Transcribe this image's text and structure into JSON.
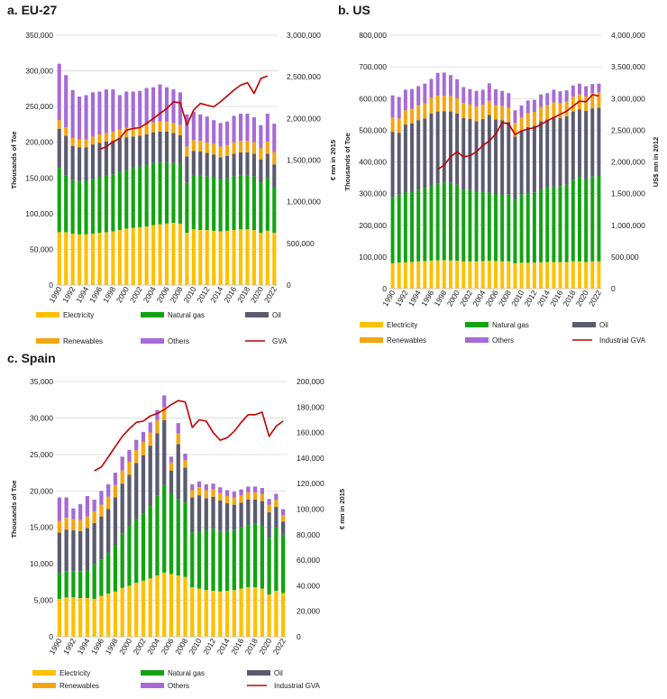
{
  "colors": {
    "Electricity": "#ffc000",
    "Natural gas": "#12a312",
    "Oil": "#5b5b70",
    "Renewables": "#f5a60f",
    "Others": "#a66bd6",
    "GVA": "#c00000"
  },
  "chart_data": [
    {
      "id": "eu",
      "type": "bar",
      "title": "a. EU-27",
      "ylabel": "Thousands of Toe",
      "y2label": "€ mn in 2015",
      "ylim": [
        0,
        350000
      ],
      "y2lim": [
        0,
        3000000
      ],
      "yticks": [
        "0",
        "50,000",
        "100,000",
        "150,000",
        "200,000",
        "250,000",
        "300,000",
        "350,000"
      ],
      "y2ticks": [
        "0",
        "500,000",
        "1,000,000",
        "1,500,000",
        "2,000,000",
        "2,500,000",
        "3,000,000"
      ],
      "categories": [
        1990,
        1991,
        1992,
        1993,
        1994,
        1995,
        1996,
        1997,
        1998,
        1999,
        2000,
        2001,
        2002,
        2003,
        2004,
        2005,
        2006,
        2007,
        2008,
        2009,
        2010,
        2011,
        2012,
        2013,
        2014,
        2015,
        2016,
        2017,
        2018,
        2019,
        2020,
        2021,
        2022
      ],
      "xticklabels": [
        "1990",
        "1992",
        "1994",
        "1996",
        "1998",
        "2000",
        "2002",
        "2004",
        "2006",
        "2008",
        "2010",
        "2012",
        "2014",
        "2016",
        "2018",
        "2020",
        "2022"
      ],
      "series": [
        {
          "name": "Electricity",
          "values": [
            74000,
            74000,
            72000,
            71000,
            71000,
            72000,
            73000,
            74000,
            75000,
            77000,
            79000,
            80000,
            81000,
            82000,
            84000,
            85000,
            86000,
            87000,
            86000,
            73000,
            78000,
            77000,
            77000,
            76000,
            75000,
            76000,
            77000,
            78000,
            78000,
            77000,
            73000,
            76000,
            73000
          ]
        },
        {
          "name": "Natural gas",
          "values": [
            90000,
            80000,
            75000,
            74000,
            75000,
            77000,
            78000,
            79000,
            80000,
            81000,
            82000,
            84000,
            85000,
            86000,
            87000,
            87000,
            86000,
            84000,
            84000,
            70000,
            75000,
            76000,
            75000,
            75000,
            73000,
            74000,
            75000,
            76000,
            76000,
            75000,
            71000,
            74000,
            64000
          ]
        },
        {
          "name": "Oil",
          "values": [
            55000,
            55000,
            48000,
            48000,
            47000,
            48000,
            48000,
            48000,
            47000,
            47000,
            46000,
            44000,
            43000,
            43000,
            43000,
            43000,
            43000,
            42000,
            40000,
            37000,
            35000,
            34000,
            33000,
            32000,
            31000,
            31000,
            32000,
            32000,
            32000,
            32000,
            32000,
            34000,
            32000
          ]
        },
        {
          "name": "Renewables",
          "values": [
            12000,
            12000,
            11000,
            11000,
            11000,
            11000,
            12000,
            12000,
            13000,
            13000,
            13000,
            13000,
            13000,
            14000,
            14000,
            14000,
            14000,
            14000,
            14000,
            14000,
            15000,
            15000,
            15000,
            15000,
            15000,
            15000,
            16000,
            16000,
            16000,
            16000,
            16000,
            17000,
            17000
          ]
        },
        {
          "name": "Others",
          "values": [
            79000,
            73000,
            67000,
            60000,
            62000,
            62000,
            60000,
            61000,
            59000,
            48000,
            51000,
            50000,
            50000,
            51000,
            49000,
            52000,
            48000,
            47000,
            46000,
            45000,
            40000,
            37000,
            36000,
            33000,
            33000,
            33000,
            37000,
            38000,
            38000,
            35000,
            32000,
            39000,
            40000
          ]
        }
      ],
      "line": {
        "name": "GVA",
        "start": 1996,
        "values": [
          1630000,
          1660000,
          1720000,
          1760000,
          1860000,
          1880000,
          1890000,
          1940000,
          2000000,
          2060000,
          2120000,
          2200000,
          2190000,
          1920000,
          2100000,
          2180000,
          2160000,
          2140000,
          2200000,
          2270000,
          2340000,
          2400000,
          2430000,
          2300000,
          2480000,
          2510000
        ]
      },
      "legend": [
        "Electricity",
        "Natural gas",
        "Oil",
        "Renewables",
        "Others",
        "GVA"
      ]
    },
    {
      "id": "us",
      "type": "bar",
      "title": "b. US",
      "ylabel": "Thousands of Toe",
      "y2label": "US$ mn in 2012",
      "ylim": [
        0,
        800000
      ],
      "y2lim": [
        0,
        4000000
      ],
      "yticks": [
        "0",
        "100,000",
        "200,000",
        "300,000",
        "400,000",
        "500,000",
        "600,000",
        "700,000",
        "800,000"
      ],
      "y2ticks": [
        "0",
        "500,000",
        "1,000,000",
        "1,500,000",
        "2,000,000",
        "2,500,000",
        "3,000,000",
        "3,500,000",
        "4,000,000"
      ],
      "categories": [
        1990,
        1991,
        1992,
        1993,
        1994,
        1995,
        1996,
        1997,
        1998,
        1999,
        2000,
        2001,
        2002,
        2003,
        2004,
        2005,
        2006,
        2007,
        2008,
        2009,
        2010,
        2011,
        2012,
        2013,
        2014,
        2015,
        2016,
        2017,
        2018,
        2019,
        2020,
        2021,
        2022
      ],
      "xticklabels": [
        "1990",
        "1992",
        "1994",
        "1996",
        "1998",
        "2000",
        "2002",
        "2004",
        "2006",
        "2008",
        "2010",
        "2012",
        "2014",
        "2016",
        "2018",
        "2020",
        "2022"
      ],
      "series": [
        {
          "name": "Electricity",
          "values": [
            80000,
            82000,
            83000,
            84000,
            86000,
            87000,
            88000,
            89000,
            90000,
            89000,
            88000,
            86000,
            86000,
            86000,
            87000,
            88000,
            87000,
            86000,
            86000,
            80000,
            82000,
            82000,
            82000,
            83000,
            84000,
            84000,
            84000,
            84000,
            86000,
            86000,
            84000,
            86000,
            86000
          ]
        },
        {
          "name": "Natural gas",
          "values": [
            210000,
            215000,
            220000,
            222000,
            226000,
            230000,
            235000,
            242000,
            245000,
            245000,
            240000,
            225000,
            225000,
            220000,
            218000,
            215000,
            212000,
            210000,
            212000,
            200000,
            215000,
            218000,
            222000,
            230000,
            235000,
            238000,
            240000,
            245000,
            258000,
            265000,
            262000,
            268000,
            270000
          ]
        },
        {
          "name": "Oil",
          "values": [
            205000,
            195000,
            215000,
            215000,
            220000,
            220000,
            230000,
            228000,
            225000,
            225000,
            225000,
            228000,
            225000,
            222000,
            230000,
            245000,
            235000,
            235000,
            228000,
            200000,
            200000,
            210000,
            210000,
            215000,
            215000,
            220000,
            215000,
            215000,
            215000,
            215000,
            215000,
            215000,
            215000
          ]
        },
        {
          "name": "Renewables",
          "values": [
            45000,
            45000,
            45000,
            47000,
            47000,
            48000,
            49000,
            50000,
            49000,
            49000,
            48000,
            47000,
            46000,
            46000,
            46000,
            45000,
            45000,
            45000,
            45000,
            43000,
            43000,
            44000,
            44000,
            45000,
            45000,
            46000,
            46000,
            46000,
            47000,
            47000,
            46000,
            47000,
            48000
          ]
        },
        {
          "name": "Others",
          "values": [
            70000,
            68000,
            65000,
            62000,
            60000,
            62000,
            60000,
            72000,
            73000,
            66000,
            60000,
            50000,
            48000,
            50000,
            47000,
            55000,
            50000,
            48000,
            46000,
            40000,
            38000,
            40000,
            38000,
            40000,
            38000,
            40000,
            38000,
            36000,
            35000,
            34000,
            32000,
            30000,
            28000
          ]
        }
      ],
      "line": {
        "name": "Industrial GVA",
        "start": 1997,
        "values": [
          1880000,
          1950000,
          2080000,
          2160000,
          2080000,
          2100000,
          2160000,
          2260000,
          2330000,
          2440000,
          2620000,
          2600000,
          2430000,
          2490000,
          2520000,
          2540000,
          2590000,
          2650000,
          2700000,
          2750000,
          2800000,
          2880000,
          2960000,
          2950000,
          3060000,
          3040000
        ]
      },
      "legend": [
        "Electricity",
        "Natural gas",
        "Oil",
        "Renewables",
        "Others",
        "Industrial GVA"
      ]
    },
    {
      "id": "es",
      "type": "bar",
      "title": "c. Spain",
      "ylabel": "Thousands of Toe",
      "y2label": "€ mn in 2015",
      "ylim": [
        0,
        35000
      ],
      "y2lim": [
        0,
        200000
      ],
      "yticks": [
        "0",
        "5,000",
        "10,000",
        "15,000",
        "20,000",
        "25,000",
        "30,000",
        "35,000"
      ],
      "y2ticks": [
        "0",
        "20,000",
        "40,000",
        "60,000",
        "80,000",
        "100,000",
        "120,000",
        "140,000",
        "160,000",
        "180,000",
        "200,000"
      ],
      "categories": [
        1990,
        1991,
        1992,
        1993,
        1994,
        1995,
        1996,
        1997,
        1998,
        1999,
        2000,
        2001,
        2002,
        2003,
        2004,
        2005,
        2006,
        2007,
        2008,
        2009,
        2010,
        2011,
        2012,
        2013,
        2014,
        2015,
        2016,
        2017,
        2018,
        2019,
        2020,
        2021,
        2022
      ],
      "xticklabels": [
        "1990",
        "1992",
        "1994",
        "1996",
        "1998",
        "2000",
        "2002",
        "2004",
        "2006",
        "2008",
        "2010",
        "2012",
        "2014",
        "2016",
        "2018",
        "2020",
        "2022"
      ],
      "series": [
        {
          "name": "Electricity",
          "values": [
            5200,
            5400,
            5400,
            5300,
            5300,
            5200,
            5600,
            5900,
            6200,
            6700,
            7000,
            7400,
            7700,
            8000,
            8400,
            8800,
            8600,
            8400,
            8200,
            6800,
            6600,
            6400,
            6300,
            6200,
            6300,
            6400,
            6600,
            6800,
            6800,
            6600,
            5800,
            6300,
            6000
          ]
        },
        {
          "name": "Natural gas",
          "values": [
            3500,
            3600,
            3600,
            3700,
            3800,
            4800,
            5000,
            5500,
            6300,
            7500,
            8200,
            8800,
            9200,
            10000,
            11000,
            12000,
            11000,
            10500,
            10200,
            7500,
            7800,
            8200,
            8500,
            8300,
            8200,
            8300,
            8400,
            8600,
            8700,
            8600,
            7800,
            8700,
            8000
          ]
        },
        {
          "name": "Oil",
          "values": [
            5600,
            5700,
            5600,
            5500,
            5800,
            5600,
            5900,
            6100,
            6600,
            6800,
            7000,
            7600,
            8000,
            8200,
            8500,
            8900,
            3200,
            7500,
            4800,
            4800,
            5000,
            4400,
            4400,
            4200,
            3800,
            3400,
            3400,
            3400,
            3300,
            3400,
            3500,
            2800,
            1800
          ]
        },
        {
          "name": "Renewables",
          "values": [
            1600,
            1600,
            1500,
            1500,
            1600,
            1600,
            1600,
            1700,
            1700,
            1800,
            1800,
            1800,
            1800,
            1800,
            1800,
            1800,
            1100,
            1500,
            1000,
            1000,
            1100,
            1100,
            1000,
            1000,
            1000,
            1000,
            1000,
            1000,
            1000,
            1000,
            1000,
            1000,
            900
          ]
        },
        {
          "name": "Others",
          "values": [
            3200,
            2800,
            1500,
            2200,
            2800,
            1600,
            1900,
            1700,
            1700,
            1900,
            1600,
            1400,
            1400,
            1400,
            1400,
            1600,
            800,
            1400,
            900,
            800,
            800,
            800,
            800,
            800,
            800,
            800,
            800,
            800,
            800,
            800,
            800,
            800,
            800
          ]
        }
      ],
      "line": {
        "name": "Industrial GVA",
        "start": 1995,
        "values": [
          130000,
          133000,
          141000,
          149000,
          157000,
          163000,
          168000,
          169000,
          173000,
          175000,
          178000,
          182000,
          185000,
          184000,
          164000,
          170000,
          169000,
          160000,
          154000,
          156000,
          161000,
          168000,
          174000,
          174000,
          176000,
          157000,
          165000,
          169000
        ]
      },
      "legend": [
        "Electricity",
        "Natural gas",
        "Oil",
        "Renewables",
        "Others",
        "Industrial GVA"
      ]
    }
  ]
}
